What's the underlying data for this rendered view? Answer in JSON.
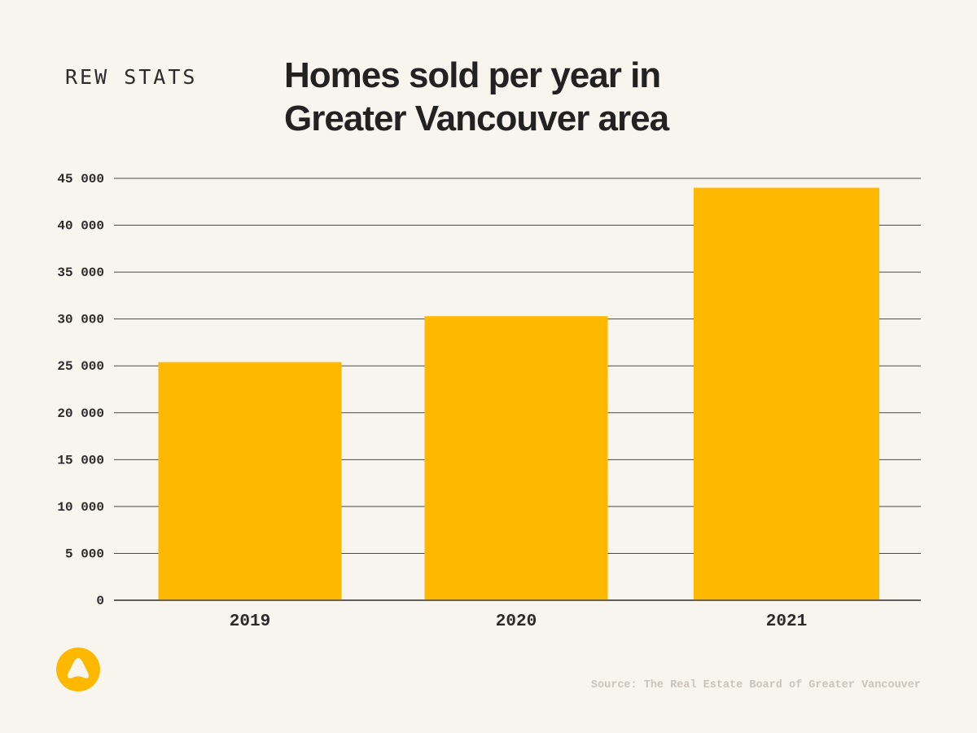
{
  "brand": "REW STATS",
  "title_lines": [
    "Homes sold per year in",
    "Greater Vancouver area"
  ],
  "source": "Source: The Real Estate Board of Greater Vancouver",
  "logo_icon": "triangle-logo-icon",
  "colors": {
    "bar": "#ffb800",
    "background": "#f8f4ee",
    "grid": "#4a4a4a",
    "text": "#2b2b2b"
  },
  "chart_data": {
    "type": "bar",
    "title": "Homes sold per year in Greater Vancouver area",
    "xlabel": "",
    "ylabel": "",
    "categories": [
      "2019",
      "2020",
      "2021"
    ],
    "values": [
      25400,
      30300,
      44000
    ],
    "ylim": [
      0,
      45000
    ],
    "yticks": [
      0,
      5000,
      10000,
      15000,
      20000,
      25000,
      30000,
      35000,
      40000,
      45000
    ],
    "ytick_labels": [
      "0",
      "5 000",
      "10 000",
      "15 000",
      "20 000",
      "25 000",
      "30 000",
      "35 000",
      "40 000",
      "45 000"
    ],
    "grid": true,
    "legend": "none"
  }
}
